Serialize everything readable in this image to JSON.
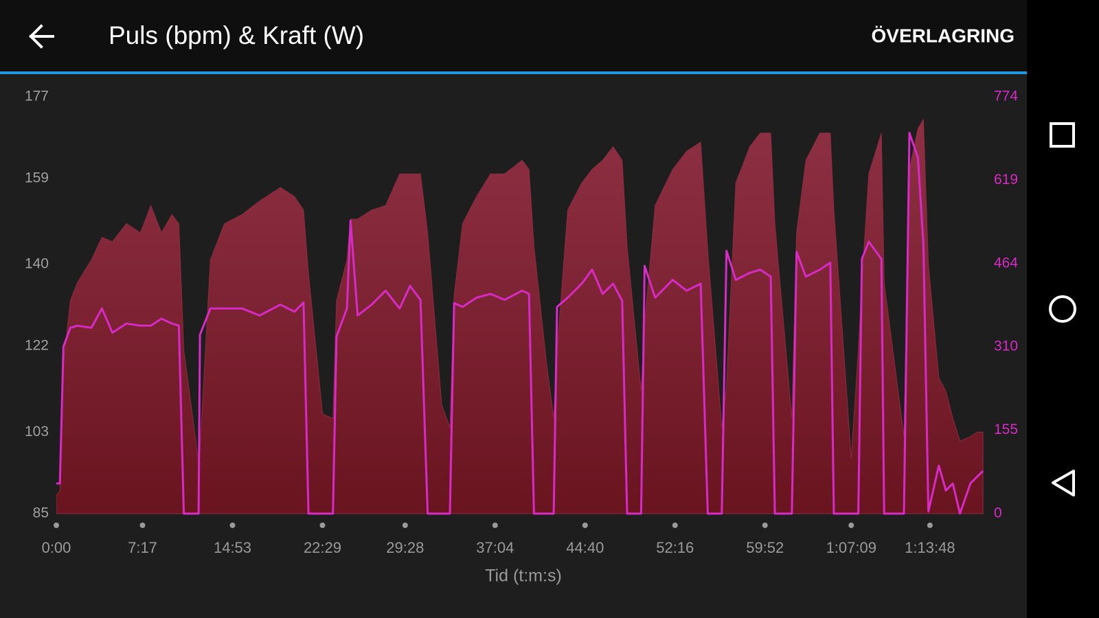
{
  "header": {
    "title": "Puls (bpm) & Kraft (W)",
    "action": "ÖVERLAGRING"
  },
  "chart_data": {
    "type": "area-line",
    "x_label": "Tid (t:m:s)",
    "x": [
      0,
      18,
      36,
      71,
      107,
      178,
      231,
      284,
      355,
      426,
      479,
      533,
      586,
      621,
      646,
      692,
      721,
      728,
      781,
      852,
      941,
      1030,
      1136,
      1207,
      1253,
      1278,
      1349,
      1402,
      1420,
      1473,
      1491,
      1527,
      1598,
      1669,
      1740,
      1793,
      1846,
      1882,
      1953,
      1995,
      2016,
      2059,
      2130,
      2201,
      2272,
      2361,
      2396,
      2421,
      2485,
      2521,
      2538,
      2592,
      2663,
      2716,
      2769,
      2822,
      2868,
      2893,
      2964,
      2982,
      3035,
      3124,
      3195,
      3266,
      3302,
      3373,
      3397,
      3444,
      3515,
      3568,
      3621,
      3642,
      3728,
      3752,
      3799,
      3870,
      3923,
      3941,
      4029,
      4065,
      4083,
      4118,
      4182,
      4196,
      4296,
      4324,
      4367,
      4395,
      4420,
      4473,
      4509,
      4544,
      4580,
      4633,
      4668,
      4697
    ],
    "series": [
      {
        "color": "#8c2c42",
        "axis": "y",
        "values": [
          89,
          90,
          118,
          132,
          136,
          141,
          146,
          145,
          149,
          147,
          153,
          147,
          151,
          149,
          121,
          106,
          96,
          99,
          141,
          149,
          151,
          154,
          157,
          155,
          152,
          138,
          107,
          106,
          132,
          141,
          150,
          150,
          152,
          153,
          160,
          160,
          160,
          147,
          109,
          104,
          133,
          149,
          155,
          160,
          160,
          163,
          161,
          144,
          118,
          106,
          121,
          152,
          158,
          161,
          163,
          166,
          163,
          144,
          112,
          127,
          153,
          161,
          165,
          167,
          143,
          104,
          113,
          158,
          166,
          169,
          169,
          149,
          106,
          147,
          163,
          169,
          169,
          152,
          97,
          121,
          136,
          160,
          169,
          136,
          102,
          161,
          170,
          172,
          140,
          115,
          112,
          106,
          101,
          102,
          103,
          103
        ]
      },
      {
        "color": "#d62bc4",
        "axis": "y2",
        "values": [
          56,
          56,
          310,
          345,
          349,
          345,
          381,
          336,
          353,
          349,
          349,
          362,
          353,
          349,
          0,
          0,
          0,
          332,
          381,
          381,
          381,
          368,
          388,
          375,
          392,
          0,
          0,
          0,
          329,
          381,
          544,
          368,
          388,
          414,
          381,
          423,
          397,
          0,
          0,
          0,
          391,
          384,
          401,
          408,
          397,
          414,
          408,
          0,
          0,
          0,
          384,
          401,
          427,
          453,
          408,
          427,
          395,
          0,
          0,
          460,
          401,
          434,
          414,
          427,
          0,
          0,
          488,
          434,
          447,
          453,
          440,
          0,
          0,
          486,
          440,
          453,
          466,
          0,
          0,
          0,
          473,
          505,
          473,
          0,
          0,
          707,
          661,
          499,
          4,
          89,
          43,
          56,
          0,
          56,
          69,
          79
        ]
      }
    ],
    "xlim": [
      0,
      4700
    ],
    "xticks": [
      {
        "value": 0,
        "label": "0:00"
      },
      {
        "value": 437,
        "label": "7:17"
      },
      {
        "value": 893,
        "label": "14:53"
      },
      {
        "value": 1349,
        "label": "22:29"
      },
      {
        "value": 1768,
        "label": "29:28"
      },
      {
        "value": 2224,
        "label": "37:04"
      },
      {
        "value": 2680,
        "label": "44:40"
      },
      {
        "value": 3136,
        "label": "52:16"
      },
      {
        "value": 3592,
        "label": "59:52"
      },
      {
        "value": 4029,
        "label": "1:07:09"
      },
      {
        "value": 4428,
        "label": "1:13:48"
      }
    ],
    "ylim": [
      85,
      177
    ],
    "yticks": [
      85,
      103,
      122,
      140,
      159,
      177
    ],
    "y2lim": [
      0,
      774
    ],
    "y2ticks": [
      0,
      155,
      310,
      464,
      619,
      774
    ]
  }
}
